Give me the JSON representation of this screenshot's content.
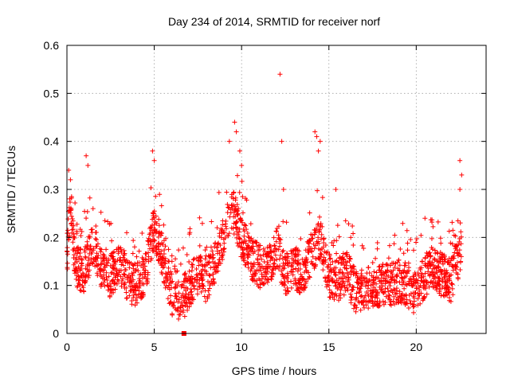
{
  "chart_data": {
    "type": "scatter",
    "title": "Day 234 of 2014, SRMTID for receiver norf",
    "xlabel": "GPS time / hours",
    "ylabel": "SRMTID / TECUs",
    "xlim": [
      0,
      24
    ],
    "ylim": [
      0,
      0.6
    ],
    "xticks": [
      0,
      5,
      10,
      15,
      20
    ],
    "xtick_labels": [
      "0",
      "5",
      "10",
      "15",
      "20"
    ],
    "yticks": [
      0,
      0.1,
      0.2,
      0.3,
      0.4,
      0.5,
      0.6
    ],
    "ytick_labels": [
      "0",
      "0.1",
      "0.2",
      "0.3",
      "0.4",
      "0.5",
      "0.6"
    ],
    "grid": true,
    "marker": "+",
    "color": "#ff0000",
    "marker_note": "small filled square at x=6.7, y=0",
    "series": [
      {
        "name": "SRMTID",
        "trend": [
          [
            0.0,
            0.16
          ],
          [
            0.2,
            0.27
          ],
          [
            0.5,
            0.14
          ],
          [
            1.0,
            0.13
          ],
          [
            1.5,
            0.19
          ],
          [
            2.0,
            0.13
          ],
          [
            2.5,
            0.12
          ],
          [
            3.0,
            0.15
          ],
          [
            3.5,
            0.11
          ],
          [
            4.0,
            0.1
          ],
          [
            4.5,
            0.13
          ],
          [
            5.0,
            0.22
          ],
          [
            5.5,
            0.16
          ],
          [
            6.0,
            0.08
          ],
          [
            6.5,
            0.06
          ],
          [
            7.0,
            0.1
          ],
          [
            7.5,
            0.12
          ],
          [
            8.0,
            0.11
          ],
          [
            8.5,
            0.15
          ],
          [
            9.0,
            0.21
          ],
          [
            9.5,
            0.26
          ],
          [
            10.0,
            0.2
          ],
          [
            10.5,
            0.16
          ],
          [
            11.0,
            0.14
          ],
          [
            11.5,
            0.14
          ],
          [
            12.0,
            0.18
          ],
          [
            12.5,
            0.12
          ],
          [
            13.0,
            0.14
          ],
          [
            13.5,
            0.12
          ],
          [
            14.0,
            0.17
          ],
          [
            14.5,
            0.2
          ],
          [
            15.0,
            0.12
          ],
          [
            15.5,
            0.11
          ],
          [
            16.0,
            0.13
          ],
          [
            16.5,
            0.09
          ],
          [
            17.0,
            0.09
          ],
          [
            17.5,
            0.1
          ],
          [
            18.0,
            0.1
          ],
          [
            18.5,
            0.1
          ],
          [
            19.0,
            0.11
          ],
          [
            19.5,
            0.1
          ],
          [
            20.0,
            0.08
          ],
          [
            20.5,
            0.12
          ],
          [
            21.0,
            0.14
          ],
          [
            21.5,
            0.12
          ],
          [
            22.0,
            0.11
          ],
          [
            22.5,
            0.17
          ],
          [
            22.6,
            0.16
          ]
        ],
        "spikes": [
          [
            0.1,
            0.34
          ],
          [
            0.2,
            0.32
          ],
          [
            1.1,
            0.37
          ],
          [
            1.2,
            0.35
          ],
          [
            4.9,
            0.38
          ],
          [
            5.0,
            0.36
          ],
          [
            9.3,
            0.4
          ],
          [
            9.6,
            0.44
          ],
          [
            9.7,
            0.42
          ],
          [
            9.9,
            0.38
          ],
          [
            10.0,
            0.35
          ],
          [
            12.2,
            0.54
          ],
          [
            12.3,
            0.4
          ],
          [
            12.4,
            0.3
          ],
          [
            14.2,
            0.42
          ],
          [
            14.3,
            0.41
          ],
          [
            14.5,
            0.4
          ],
          [
            14.4,
            0.38
          ],
          [
            15.4,
            0.3
          ],
          [
            20.5,
            0.24
          ],
          [
            22.5,
            0.36
          ],
          [
            22.6,
            0.33
          ],
          [
            22.5,
            0.3
          ]
        ]
      }
    ]
  }
}
